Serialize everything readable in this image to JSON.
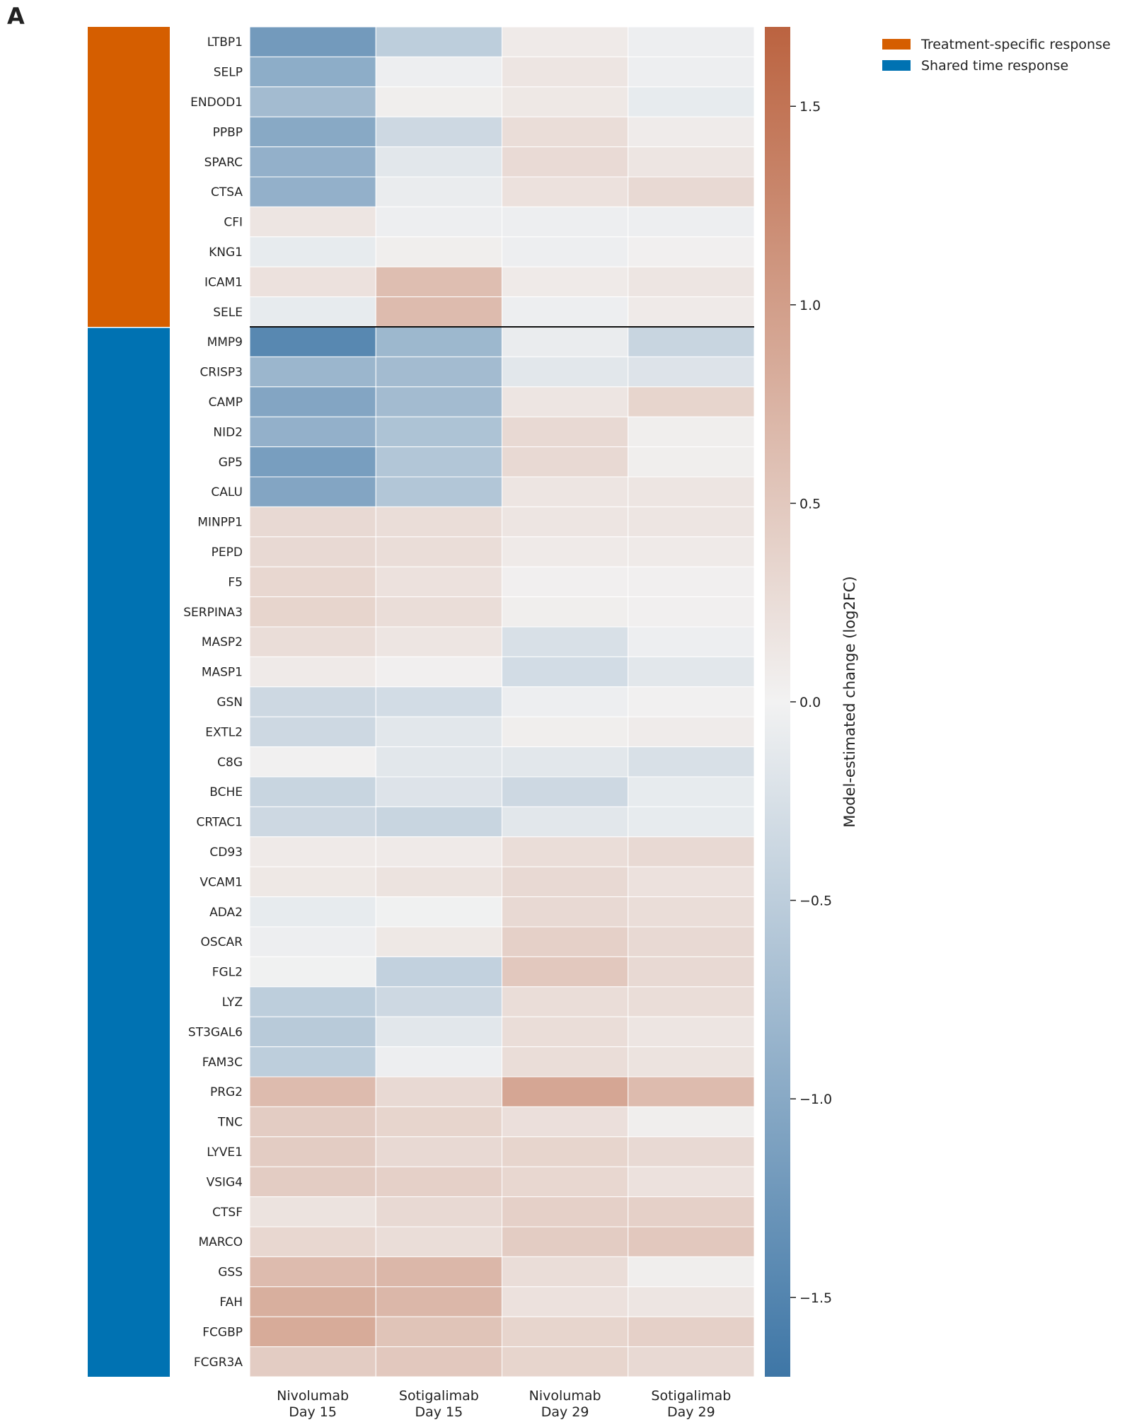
{
  "panel_label": "A",
  "legend": {
    "placement": "top-right",
    "items": [
      {
        "label": "Treatment-specific response",
        "color": "#d55e00"
      },
      {
        "label": "Shared time response",
        "color": "#0072b2"
      }
    ]
  },
  "colorbar": {
    "label": "Model-estimated change (log2FC)",
    "range": [
      -1.7,
      1.7
    ],
    "ticks": [
      -1.5,
      -1.0,
      -0.5,
      0.0,
      0.5,
      1.0,
      1.5
    ],
    "tick_labels": [
      "−1.5",
      "−1.0",
      "−0.5",
      "0.0",
      "0.5",
      "1.0",
      "1.5"
    ],
    "negative_color": "#3e76a6",
    "mid_color": "#f2f2f2",
    "positive_color": "#bb6340"
  },
  "chart_data": {
    "type": "heatmap",
    "columns": [
      {
        "line1": "Nivolumab",
        "line2": "Day 15"
      },
      {
        "line1": "Sotigalimab",
        "line2": "Day 15"
      },
      {
        "line1": "Nivolumab",
        "line2": "Day 29"
      },
      {
        "line1": "Sotigalimab",
        "line2": "Day 29"
      }
    ],
    "groups": [
      {
        "name": "Treatment-specific response",
        "color": "#d55e00",
        "count": 10
      },
      {
        "name": "Shared time response",
        "color": "#0072b2",
        "count": 35
      }
    ],
    "rows": [
      "LTBP1",
      "SELP",
      "ENDOD1",
      "PPBP",
      "SPARC",
      "CTSA",
      "CFI",
      "KNG1",
      "ICAM1",
      "SELE",
      "MMP9",
      "CRISP3",
      "CAMP",
      "NID2",
      "GP5",
      "CALU",
      "MINPP1",
      "PEPD",
      "F5",
      "SERPINA3",
      "MASP2",
      "MASP1",
      "GSN",
      "EXTL2",
      "C8G",
      "BCHE",
      "CRTAC1",
      "CD93",
      "VCAM1",
      "ADA2",
      "OSCAR",
      "FGL2",
      "LYZ",
      "ST3GAL6",
      "FAM3C",
      "PRG2",
      "TNC",
      "LYVE1",
      "VSIG4",
      "CTSF",
      "MARCO",
      "GSS",
      "FAH",
      "FCGBP",
      "FCGR3A"
    ],
    "values": [
      [
        -1.2,
        -0.5,
        0.1,
        -0.05
      ],
      [
        -0.95,
        -0.05,
        0.15,
        -0.05
      ],
      [
        -0.75,
        0.05,
        0.12,
        -0.1
      ],
      [
        -1.0,
        -0.35,
        0.25,
        0.08
      ],
      [
        -0.9,
        -0.15,
        0.28,
        0.15
      ],
      [
        -0.9,
        -0.08,
        0.2,
        0.3
      ],
      [
        0.15,
        -0.05,
        -0.05,
        -0.05
      ],
      [
        -0.1,
        0.05,
        -0.05,
        0.03
      ],
      [
        0.2,
        0.62,
        0.1,
        0.15
      ],
      [
        -0.1,
        0.65,
        -0.05,
        0.1
      ],
      [
        -1.45,
        -0.8,
        -0.08,
        -0.4
      ],
      [
        -0.82,
        -0.75,
        -0.15,
        -0.2
      ],
      [
        -1.05,
        -0.75,
        0.15,
        0.35
      ],
      [
        -0.9,
        -0.65,
        0.3,
        0.05
      ],
      [
        -1.15,
        -0.6,
        0.3,
        0.05
      ],
      [
        -1.05,
        -0.6,
        0.15,
        0.15
      ],
      [
        0.3,
        0.25,
        0.15,
        0.15
      ],
      [
        0.3,
        0.25,
        0.1,
        0.1
      ],
      [
        0.32,
        0.2,
        0.03,
        0.03
      ],
      [
        0.35,
        0.25,
        0.05,
        0.03
      ],
      [
        0.25,
        0.15,
        -0.25,
        -0.05
      ],
      [
        0.1,
        0.03,
        -0.3,
        -0.15
      ],
      [
        -0.35,
        -0.3,
        -0.05,
        0.02
      ],
      [
        -0.35,
        -0.15,
        0.05,
        0.08
      ],
      [
        0.02,
        -0.15,
        -0.15,
        -0.25
      ],
      [
        -0.4,
        -0.2,
        -0.35,
        -0.1
      ],
      [
        -0.35,
        -0.4,
        -0.15,
        -0.1
      ],
      [
        0.1,
        0.1,
        0.25,
        0.3
      ],
      [
        0.12,
        0.18,
        0.3,
        0.2
      ],
      [
        -0.1,
        -0.02,
        0.3,
        0.25
      ],
      [
        -0.05,
        0.12,
        0.4,
        0.3
      ],
      [
        -0.02,
        -0.45,
        0.5,
        0.3
      ],
      [
        -0.5,
        -0.35,
        0.25,
        0.25
      ],
      [
        -0.55,
        -0.15,
        0.25,
        0.15
      ],
      [
        -0.5,
        -0.05,
        0.25,
        0.18
      ],
      [
        0.65,
        0.3,
        0.9,
        0.65
      ],
      [
        0.45,
        0.35,
        0.22,
        0.05
      ],
      [
        0.45,
        0.3,
        0.35,
        0.3
      ],
      [
        0.45,
        0.4,
        0.32,
        0.2
      ],
      [
        0.18,
        0.3,
        0.4,
        0.4
      ],
      [
        0.32,
        0.25,
        0.45,
        0.5
      ],
      [
        0.65,
        0.7,
        0.25,
        0.05
      ],
      [
        0.8,
        0.7,
        0.2,
        0.15
      ],
      [
        0.85,
        0.55,
        0.35,
        0.4
      ],
      [
        0.45,
        0.5,
        0.35,
        0.3
      ]
    ]
  }
}
